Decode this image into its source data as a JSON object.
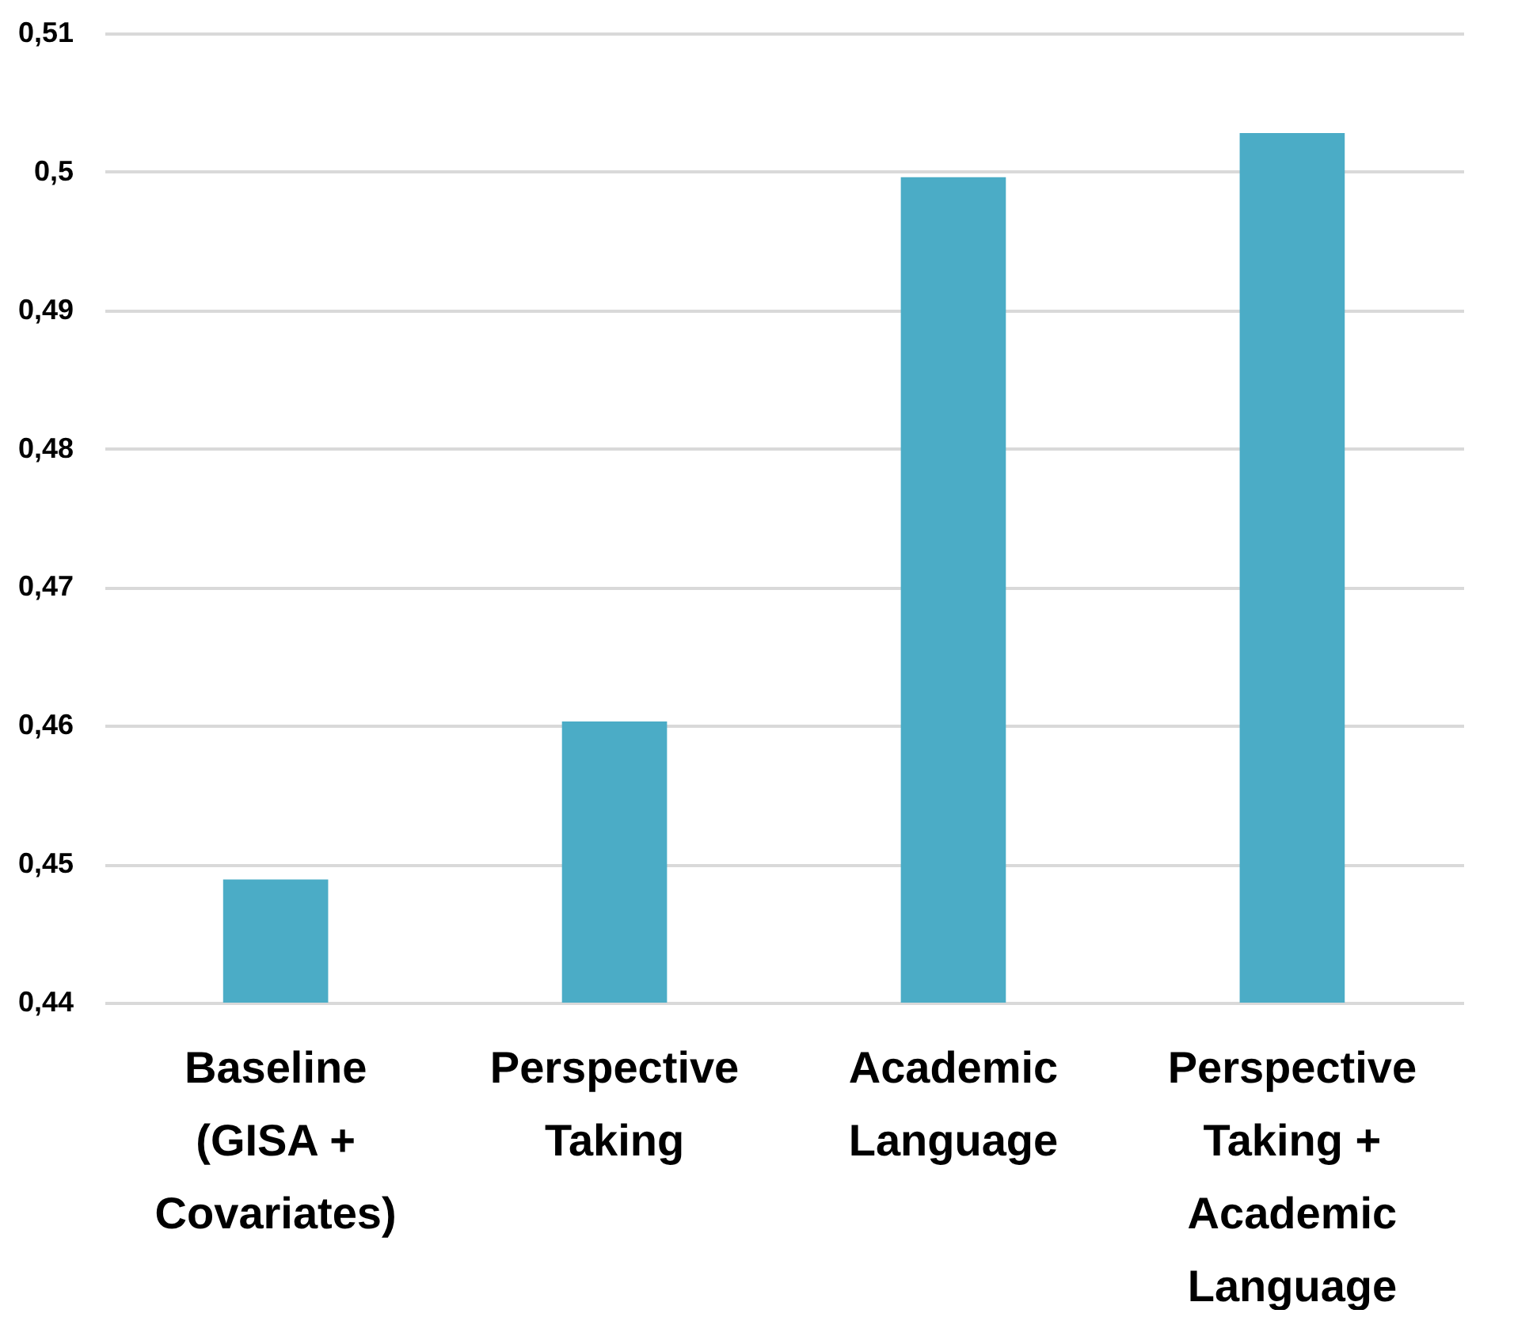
{
  "chart_data": {
    "type": "bar",
    "categories": [
      "Baseline (GISA + Covariates)",
      "Perspective Taking",
      "Academic Language",
      "Perspective Taking + Academic Language"
    ],
    "values": [
      0.4489,
      0.4603,
      0.4996,
      0.5028
    ],
    "color": "#4bacc6",
    "ylim": [
      0.44,
      0.51
    ],
    "yticks": [
      {
        "value": 0.44,
        "label": "0,44"
      },
      {
        "value": 0.45,
        "label": "0,45"
      },
      {
        "value": 0.46,
        "label": "0,46"
      },
      {
        "value": 0.47,
        "label": "0,47"
      },
      {
        "value": 0.48,
        "label": "0,48"
      },
      {
        "value": 0.49,
        "label": "0,49"
      },
      {
        "value": 0.5,
        "label": "0,5"
      },
      {
        "value": 0.51,
        "label": "0,51"
      }
    ],
    "grid": "y"
  }
}
